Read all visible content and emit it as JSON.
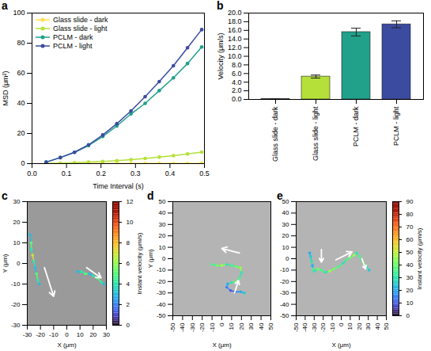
{
  "chart_data": [
    {
      "type": "line",
      "title": "a",
      "xlabel": "Time Interval (s)",
      "ylabel": "MSD (μm²)",
      "x": [
        0.041,
        0.082,
        0.123,
        0.164,
        0.205,
        0.246,
        0.287,
        0.328,
        0.369,
        0.41,
        0.451,
        0.492
      ],
      "series": [
        {
          "name": "Glass slide - dark",
          "color": "#ffe14d",
          "values": [
            0.02,
            0.04,
            0.05,
            0.07,
            0.08,
            0.1,
            0.11,
            0.13,
            0.14,
            0.16,
            0.17,
            0.19
          ]
        },
        {
          "name": "Glass slide - light",
          "color": "#b5e03a",
          "values": [
            0.1,
            0.3,
            0.6,
            1,
            1.4,
            2,
            2.6,
            3.4,
            4.3,
            5.3,
            6.4,
            7.6
          ]
        },
        {
          "name": "PCLM - dark",
          "color": "#21a08a",
          "values": [
            1,
            4,
            7.5,
            12,
            18,
            25,
            33,
            40,
            48.5,
            57,
            66.5,
            77.5
          ]
        },
        {
          "name": "PCLM - light",
          "color": "#3b4ba0",
          "values": [
            1,
            4,
            7.5,
            12.5,
            19,
            26.5,
            35,
            44.5,
            54.5,
            65,
            77,
            89
          ]
        }
      ],
      "xlim": [
        0,
        0.5
      ],
      "xticks": [
        {
          "value": 0,
          "label": "0.0"
        },
        0.1,
        0.2,
        0.3,
        0.4,
        0.5
      ],
      "ylim": [
        0,
        100
      ],
      "yticks": [
        0,
        20,
        40,
        60,
        80,
        100
      ],
      "marker": "circle",
      "legend": "top-left",
      "grid": false
    },
    {
      "type": "bar",
      "title": "b",
      "ylabel": "Velocity (μm/s)",
      "categories": [
        "Glass slide - dark",
        "Glass slide - light",
        "PCLM - dark",
        "PCLM - light"
      ],
      "values": [
        0.1,
        5.3,
        15.6,
        17.4
      ],
      "errors": [
        0.05,
        0.35,
        0.9,
        0.8
      ],
      "colors": [
        "#ffe14d",
        "#b5e03a",
        "#21a08a",
        "#3b4ba0"
      ],
      "ylim": [
        0,
        20
      ],
      "yticks": [
        {
          "value": 0,
          "label": "0.0"
        },
        {
          "value": 2,
          "label": "2.0"
        },
        {
          "value": 4,
          "label": "4.0"
        },
        {
          "value": 6,
          "label": "6.0"
        },
        {
          "value": 8,
          "label": "8.0"
        },
        {
          "value": 10,
          "label": "10.0"
        },
        {
          "value": 12,
          "label": "12.0"
        },
        {
          "value": 14,
          "label": "14.0"
        },
        {
          "value": 16,
          "label": "16.0"
        },
        {
          "value": 18,
          "label": "18.0"
        },
        {
          "value": 20,
          "label": "20.0"
        }
      ]
    },
    {
      "type": "line",
      "title": "c",
      "xlabel": "X (μm)",
      "ylabel": "Y (μm)",
      "series": [
        {
          "x": [
            -28,
            -27,
            -27,
            -26,
            -25,
            -24,
            -23,
            -22,
            -21
          ],
          "y": [
            14,
            10,
            7,
            4,
            1,
            -2,
            -5,
            -8,
            -10
          ],
          "velocity": [
            3,
            5,
            4,
            7,
            4,
            3,
            5,
            4,
            3
          ]
        },
        {
          "x": [
            8,
            11,
            14,
            17,
            20,
            23,
            26,
            28
          ],
          "y": [
            -4,
            -4,
            -5,
            -5,
            -6,
            -7,
            -9,
            -10
          ],
          "velocity": [
            3,
            4,
            5,
            3,
            4,
            5,
            4,
            3
          ]
        }
      ],
      "arrows": [
        {
          "x1": -17,
          "y1": -2,
          "x2": -10,
          "y2": -16
        },
        {
          "x1": 15,
          "y1": -2,
          "x2": 26,
          "y2": -7
        }
      ],
      "xlim": [
        -30,
        30
      ],
      "xticks": [
        -30,
        -20,
        -10,
        0,
        10,
        20,
        30
      ],
      "ylim": [
        -30,
        30
      ],
      "yticks": [
        -30,
        -20,
        -10,
        0,
        10,
        20,
        30
      ],
      "colorbar": {
        "range": [
          0,
          12
        ],
        "ticks": [
          0,
          2,
          4,
          6,
          8,
          10,
          12
        ],
        "label": "Instant velocity (μm/s)"
      }
    },
    {
      "type": "line",
      "title": "d",
      "xlabel": "X (μm)",
      "ylabel": "Y (μm)",
      "series": [
        {
          "x": [
            -10,
            -5,
            0,
            5,
            10,
            15,
            19,
            20,
            18,
            15,
            10,
            6,
            5,
            9,
            14,
            19,
            23
          ],
          "y": [
            -5,
            -6,
            -6,
            -5,
            -6,
            -7,
            -8,
            -12,
            -17,
            -20,
            -21,
            -22,
            -25,
            -28,
            -29,
            -29,
            -30
          ],
          "velocity": [
            35,
            40,
            45,
            30,
            35,
            40,
            45,
            30,
            35,
            40,
            30,
            20,
            15,
            10,
            15,
            20,
            25
          ]
        }
      ],
      "arrows": [
        {
          "x1": 18,
          "y1": 5,
          "x2": 0,
          "y2": 9
        },
        {
          "x1": 13,
          "y1": -30,
          "x2": 17,
          "y2": -19
        }
      ],
      "xlim": [
        -50,
        50
      ],
      "xticks": [
        -50,
        -40,
        -30,
        -20,
        -10,
        0,
        10,
        20,
        30,
        40,
        50
      ],
      "ylim": [
        -50,
        50
      ],
      "yticks": [
        -50,
        -40,
        -30,
        -20,
        -10,
        0,
        10,
        20,
        30,
        40,
        50
      ]
    },
    {
      "type": "line",
      "title": "e",
      "xlabel": "X (μm)",
      "series": [
        {
          "x": [
            -35,
            -34,
            -33,
            -32,
            -31,
            -30,
            -26,
            -22,
            -18,
            -13,
            -8,
            -3,
            2,
            6,
            10,
            14,
            17,
            20,
            24,
            28,
            31
          ],
          "y": [
            5,
            2,
            -2,
            -6,
            -9,
            -11,
            -9,
            -10,
            -12,
            -11,
            -9,
            -7,
            -4,
            -1,
            1,
            3,
            5,
            2,
            -3,
            -7,
            -10
          ],
          "velocity": [
            20,
            25,
            30,
            20,
            35,
            30,
            40,
            35,
            30,
            45,
            40,
            35,
            30,
            35,
            40,
            45,
            30,
            35,
            40,
            30,
            25
          ]
        }
      ],
      "arrows": [
        {
          "x1": -22,
          "y1": 8,
          "x2": -22,
          "y2": -3
        },
        {
          "x1": -6,
          "y1": -1,
          "x2": 12,
          "y2": 6
        },
        {
          "x1": 23,
          "y1": 0,
          "x2": 27,
          "y2": -9
        }
      ],
      "xlim": [
        -50,
        50
      ],
      "xticks": [
        -50,
        -40,
        -30,
        -20,
        -10,
        0,
        10,
        20,
        30,
        40,
        50
      ],
      "ylim": [
        -50,
        50
      ],
      "yticks": [
        -50,
        -40,
        -30,
        -20,
        -10,
        0,
        10,
        20,
        30,
        40,
        50
      ],
      "colorbar": {
        "range": [
          0,
          90
        ],
        "ticks": [
          0,
          10,
          20,
          30,
          40,
          50,
          60,
          70,
          80,
          90
        ],
        "label": "Instant velocity (μm/s)"
      }
    }
  ]
}
